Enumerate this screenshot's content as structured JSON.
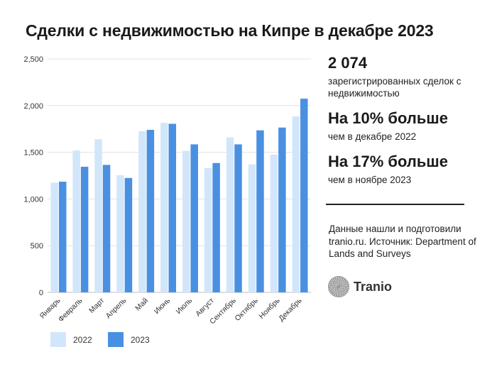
{
  "title": "Сделки с недвижимостью на Кипре в декабре 2023",
  "stats": [
    {
      "value": "2 074",
      "caption": "зарегистрированных сделок с недвижимостью"
    },
    {
      "value": "На 10% больше",
      "caption": "чем в декабре 2022"
    },
    {
      "value": "На 17% больше",
      "caption": "чем в ноябре 2023"
    }
  ],
  "source_text": "Данные нашли и подготовили tranio.ru. Источник: Department of Lands and Surveys",
  "logo_text": "Tranio",
  "chart_data": {
    "type": "bar",
    "categories": [
      "Январь",
      "Февраль",
      "Март",
      "Апрель",
      "Май",
      "Июнь",
      "Июль",
      "Август",
      "Сентябрь",
      "Октябрь",
      "Ноябрь",
      "Декабрь"
    ],
    "series": [
      {
        "name": "2022",
        "color": "#d2e6fb",
        "values": [
          1175,
          1520,
          1640,
          1255,
          1725,
          1815,
          1515,
          1330,
          1660,
          1370,
          1475,
          1885
        ]
      },
      {
        "name": "2023",
        "color": "#4a90e2",
        "values": [
          1185,
          1345,
          1365,
          1225,
          1740,
          1805,
          1585,
          1385,
          1585,
          1735,
          1765,
          2074
        ]
      }
    ],
    "ylim": [
      0,
      2500
    ],
    "yticks": [
      0,
      500,
      1000,
      1500,
      2000,
      2500
    ],
    "ytick_labels": [
      "0",
      "500",
      "1,000",
      "1,500",
      "2,000",
      "2,500"
    ],
    "grid": true,
    "legend": "bottom-left"
  }
}
